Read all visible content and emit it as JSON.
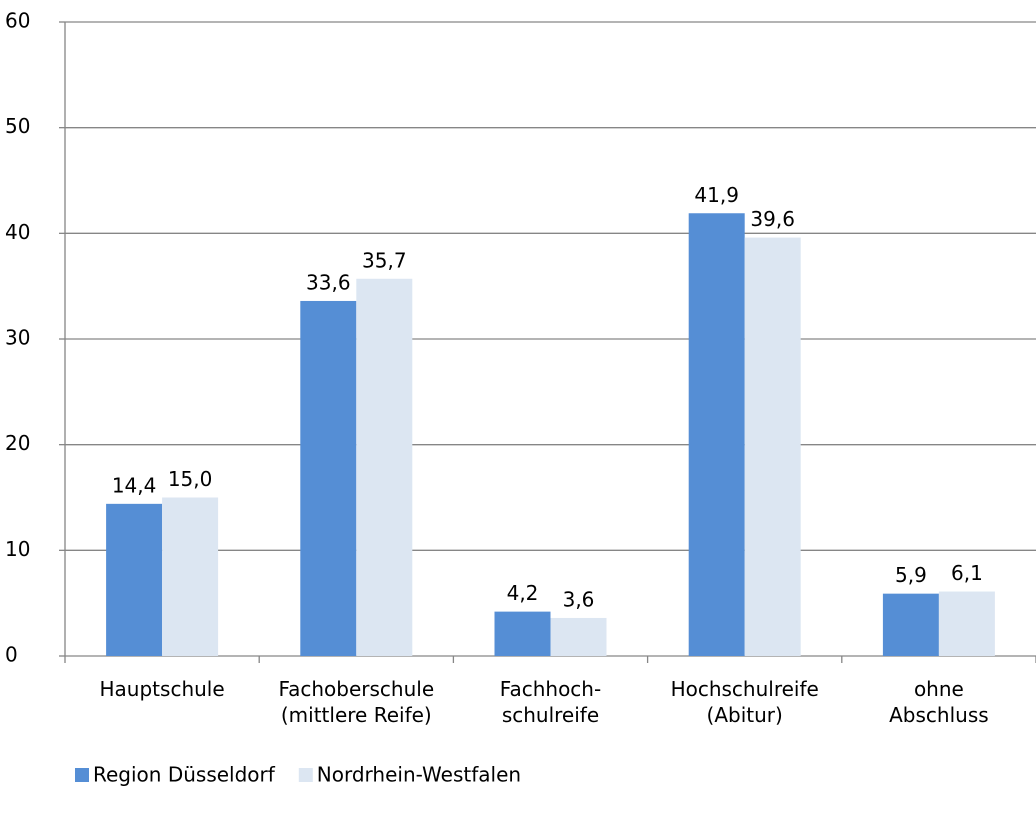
{
  "chart_data": {
    "type": "bar",
    "categories": [
      [
        "Hauptschule"
      ],
      [
        "Fachoberschule",
        "(mittlere Reife)"
      ],
      [
        "Fachhoch-",
        "schulreife"
      ],
      [
        "Hochschulreife",
        "(Abitur)"
      ],
      [
        "ohne",
        "Abschluss"
      ]
    ],
    "series": [
      {
        "name": "Region Düsseldorf",
        "color": "#558ed5",
        "values": [
          14.4,
          33.6,
          4.2,
          41.9,
          5.9
        ],
        "value_labels": [
          "14,4",
          "33,6",
          "4,2",
          "41,9",
          "5,9"
        ]
      },
      {
        "name": "Nordrhein-Westfalen",
        "color": "#dce6f2",
        "values": [
          15.0,
          35.7,
          3.6,
          39.6,
          6.1
        ],
        "value_labels": [
          "15,0",
          "35,7",
          "3,6",
          "39,6",
          "6,1"
        ]
      }
    ],
    "ylim": [
      0,
      60
    ],
    "yticks": [
      0,
      10,
      20,
      30,
      40,
      50,
      60
    ],
    "grid": true,
    "legend": "bottom-left"
  }
}
